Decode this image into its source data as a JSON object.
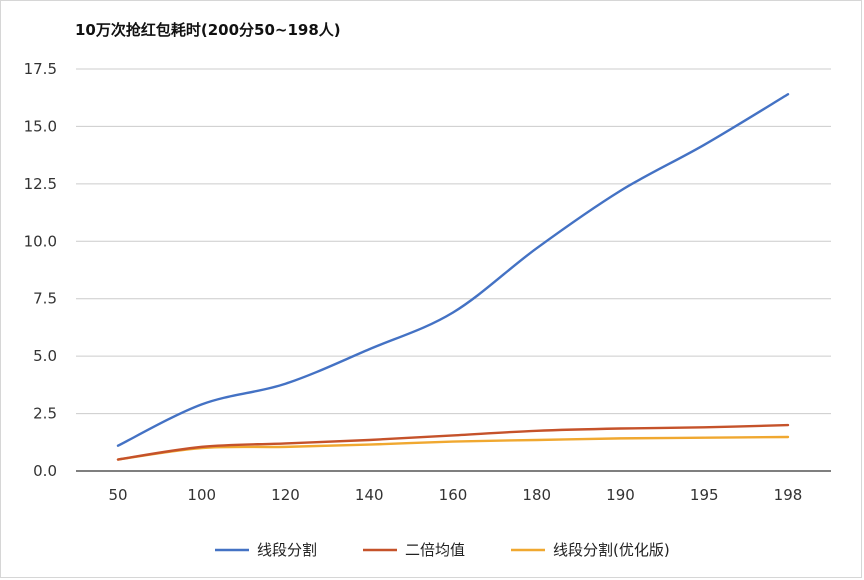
{
  "chart_data": {
    "type": "line",
    "title": "10万次抢红包耗时(200分50~198人)",
    "xlabel": "",
    "ylabel": "",
    "categories": [
      "50",
      "100",
      "120",
      "140",
      "160",
      "180",
      "190",
      "195",
      "198"
    ],
    "ylim": [
      0,
      17.5
    ],
    "yticks": [
      "0.0",
      "2.5",
      "5.0",
      "7.5",
      "10.0",
      "12.5",
      "15.0",
      "17.5"
    ],
    "ytick_values": [
      0,
      2.5,
      5,
      7.5,
      10,
      12.5,
      15,
      17.5
    ],
    "grid": true,
    "legend_position": "bottom",
    "series": [
      {
        "name": "线段分割",
        "color": "#4472c4",
        "values": [
          1.1,
          2.9,
          3.8,
          5.3,
          6.9,
          9.7,
          12.2,
          14.2,
          16.4
        ]
      },
      {
        "name": "二倍均值",
        "color": "#c5522a",
        "values": [
          0.5,
          1.05,
          1.2,
          1.35,
          1.55,
          1.75,
          1.85,
          1.9,
          2.0
        ]
      },
      {
        "name": "线段分割(优化版)",
        "color": "#f0a830",
        "values": [
          0.5,
          1.0,
          1.05,
          1.15,
          1.28,
          1.35,
          1.42,
          1.45,
          1.48
        ]
      }
    ]
  }
}
